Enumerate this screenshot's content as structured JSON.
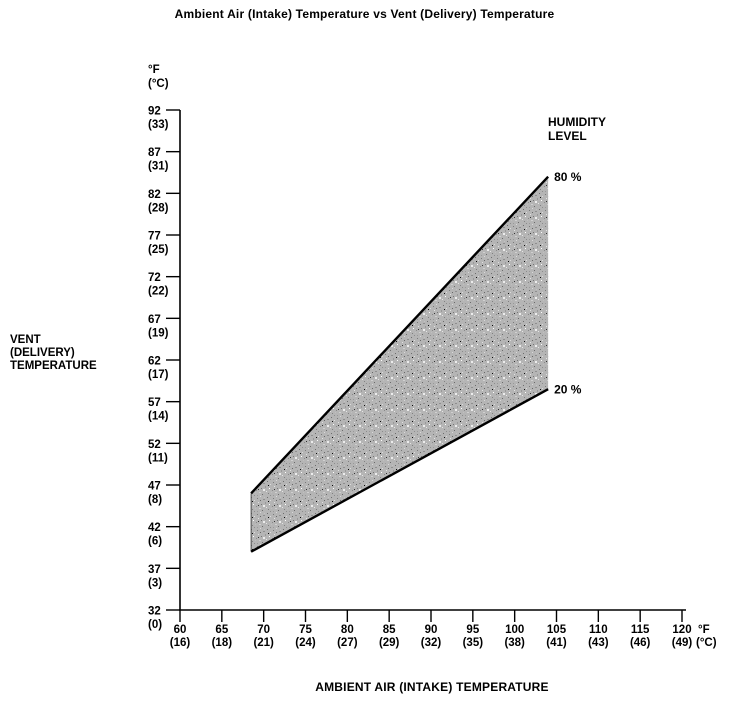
{
  "chart_data": {
    "type": "area",
    "title": "Ambient Air (Intake) Temperature vs  Vent (Delivery) Temperature",
    "xlabel": "AMBIENT AIR (INTAKE) TEMPERATURE",
    "ylabel": "VENT (DELIVERY) TEMPERATURE",
    "ylabel_lines": [
      "VENT",
      "(DELIVERY)",
      "TEMPERATURE"
    ],
    "legend_title_lines": [
      "HUMIDITY",
      "LEVEL"
    ],
    "grid": false,
    "x_axis": {
      "unit_lines": [
        "°F",
        "(°C)"
      ],
      "range_f": [
        60,
        120
      ],
      "ticks_f": [
        60,
        65,
        70,
        75,
        80,
        85,
        90,
        95,
        100,
        105,
        110,
        115,
        120
      ],
      "ticks_c": [
        16,
        18,
        21,
        24,
        27,
        29,
        32,
        35,
        38,
        41,
        43,
        46,
        49
      ]
    },
    "y_axis": {
      "unit_lines": [
        "°F",
        "(°C)"
      ],
      "range_f": [
        32,
        92
      ],
      "ticks_f": [
        32,
        37,
        42,
        47,
        52,
        57,
        62,
        67,
        72,
        77,
        82,
        87,
        92
      ],
      "ticks_c": [
        0,
        3,
        6,
        8,
        11,
        14,
        17,
        19,
        22,
        25,
        28,
        31,
        33
      ]
    },
    "series": [
      {
        "name": "80 %",
        "humidity_percent": 80,
        "points_f": [
          [
            68.5,
            46.0
          ],
          [
            104,
            84.0
          ]
        ]
      },
      {
        "name": "20 %",
        "humidity_percent": 20,
        "points_f": [
          [
            68.5,
            39.0
          ],
          [
            104,
            58.5
          ]
        ]
      }
    ],
    "band": {
      "between_series": [
        "80 %",
        "20 %"
      ],
      "fill_style": "gray-stipple"
    },
    "colors": {
      "ink": "#000000",
      "band_gray": "#b5b5b5",
      "background": "#ffffff"
    }
  }
}
